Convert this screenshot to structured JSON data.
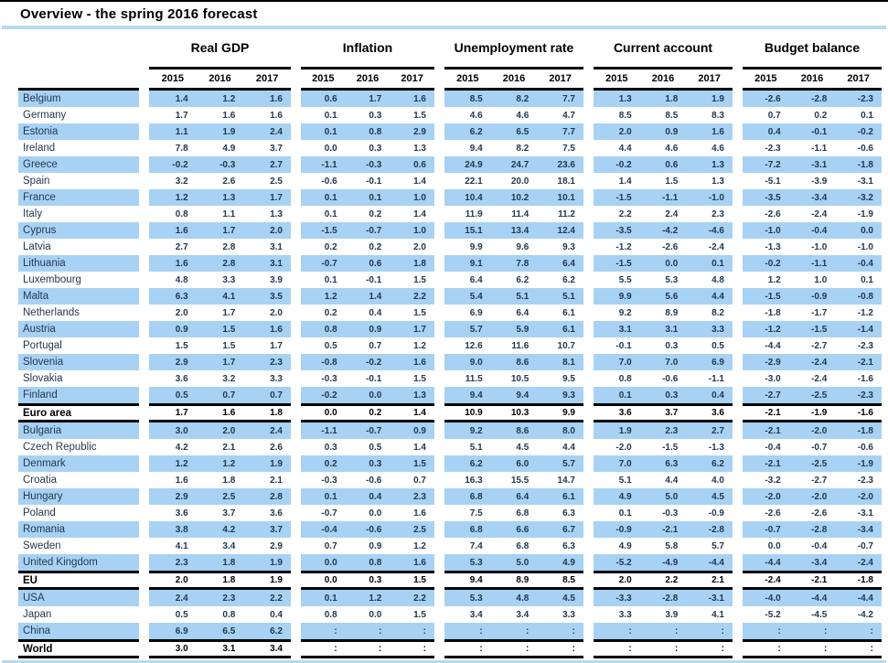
{
  "title": "Overview - the spring 2016 forecast",
  "colors": {
    "stripe": "#a8d2f4",
    "accent_line": "#b7d9ec",
    "rule": "#000000"
  },
  "table": {
    "group_headers": [
      "Real GDP",
      "Inflation",
      "Unemployment rate",
      "Current account",
      "Budget balance"
    ],
    "years": [
      "2015",
      "2016",
      "2017"
    ],
    "no_data_symbol": ":",
    "rows": [
      {
        "country": "Belgium",
        "bold": false,
        "values": [
          [
            "1.4",
            "1.2",
            "1.6"
          ],
          [
            "0.6",
            "1.7",
            "1.6"
          ],
          [
            "8.5",
            "8.2",
            "7.7"
          ],
          [
            "1.3",
            "1.8",
            "1.9"
          ],
          [
            "-2.6",
            "-2.8",
            "-2.3"
          ]
        ]
      },
      {
        "country": "Germany",
        "bold": false,
        "values": [
          [
            "1.7",
            "1.6",
            "1.6"
          ],
          [
            "0.1",
            "0.3",
            "1.5"
          ],
          [
            "4.6",
            "4.6",
            "4.7"
          ],
          [
            "8.5",
            "8.5",
            "8.3"
          ],
          [
            "0.7",
            "0.2",
            "0.1"
          ]
        ]
      },
      {
        "country": "Estonia",
        "bold": false,
        "values": [
          [
            "1.1",
            "1.9",
            "2.4"
          ],
          [
            "0.1",
            "0.8",
            "2.9"
          ],
          [
            "6.2",
            "6.5",
            "7.7"
          ],
          [
            "2.0",
            "0.9",
            "1.6"
          ],
          [
            "0.4",
            "-0.1",
            "-0.2"
          ]
        ]
      },
      {
        "country": "Ireland",
        "bold": false,
        "values": [
          [
            "7.8",
            "4.9",
            "3.7"
          ],
          [
            "0.0",
            "0.3",
            "1.3"
          ],
          [
            "9.4",
            "8.2",
            "7.5"
          ],
          [
            "4.4",
            "4.6",
            "4.6"
          ],
          [
            "-2.3",
            "-1.1",
            "-0.6"
          ]
        ]
      },
      {
        "country": "Greece",
        "bold": false,
        "values": [
          [
            "-0.2",
            "-0.3",
            "2.7"
          ],
          [
            "-1.1",
            "-0.3",
            "0.6"
          ],
          [
            "24.9",
            "24.7",
            "23.6"
          ],
          [
            "-0.2",
            "0.6",
            "1.3"
          ],
          [
            "-7.2",
            "-3.1",
            "-1.8"
          ]
        ]
      },
      {
        "country": "Spain",
        "bold": false,
        "values": [
          [
            "3.2",
            "2.6",
            "2.5"
          ],
          [
            "-0.6",
            "-0.1",
            "1.4"
          ],
          [
            "22.1",
            "20.0",
            "18.1"
          ],
          [
            "1.4",
            "1.5",
            "1.3"
          ],
          [
            "-5.1",
            "-3.9",
            "-3.1"
          ]
        ]
      },
      {
        "country": "France",
        "bold": false,
        "values": [
          [
            "1.2",
            "1.3",
            "1.7"
          ],
          [
            "0.1",
            "0.1",
            "1.0"
          ],
          [
            "10.4",
            "10.2",
            "10.1"
          ],
          [
            "-1.5",
            "-1.1",
            "-1.0"
          ],
          [
            "-3.5",
            "-3.4",
            "-3.2"
          ]
        ]
      },
      {
        "country": "Italy",
        "bold": false,
        "values": [
          [
            "0.8",
            "1.1",
            "1.3"
          ],
          [
            "0.1",
            "0.2",
            "1.4"
          ],
          [
            "11.9",
            "11.4",
            "11.2"
          ],
          [
            "2.2",
            "2.4",
            "2.3"
          ],
          [
            "-2.6",
            "-2.4",
            "-1.9"
          ]
        ]
      },
      {
        "country": "Cyprus",
        "bold": false,
        "values": [
          [
            "1.6",
            "1.7",
            "2.0"
          ],
          [
            "-1.5",
            "-0.7",
            "1.0"
          ],
          [
            "15.1",
            "13.4",
            "12.4"
          ],
          [
            "-3.5",
            "-4.2",
            "-4.6"
          ],
          [
            "-1.0",
            "-0.4",
            "0.0"
          ]
        ]
      },
      {
        "country": "Latvia",
        "bold": false,
        "values": [
          [
            "2.7",
            "2.8",
            "3.1"
          ],
          [
            "0.2",
            "0.2",
            "2.0"
          ],
          [
            "9.9",
            "9.6",
            "9.3"
          ],
          [
            "-1.2",
            "-2.6",
            "-2.4"
          ],
          [
            "-1.3",
            "-1.0",
            "-1.0"
          ]
        ]
      },
      {
        "country": "Lithuania",
        "bold": false,
        "values": [
          [
            "1.6",
            "2.8",
            "3.1"
          ],
          [
            "-0.7",
            "0.6",
            "1.8"
          ],
          [
            "9.1",
            "7.8",
            "6.4"
          ],
          [
            "-1.5",
            "0.0",
            "0.1"
          ],
          [
            "-0.2",
            "-1.1",
            "-0.4"
          ]
        ]
      },
      {
        "country": "Luxembourg",
        "bold": false,
        "values": [
          [
            "4.8",
            "3.3",
            "3.9"
          ],
          [
            "0.1",
            "-0.1",
            "1.5"
          ],
          [
            "6.4",
            "6.2",
            "6.2"
          ],
          [
            "5.5",
            "5.3",
            "4.8"
          ],
          [
            "1.2",
            "1.0",
            "0.1"
          ]
        ]
      },
      {
        "country": "Malta",
        "bold": false,
        "values": [
          [
            "6.3",
            "4.1",
            "3.5"
          ],
          [
            "1.2",
            "1.4",
            "2.2"
          ],
          [
            "5.4",
            "5.1",
            "5.1"
          ],
          [
            "9.9",
            "5.6",
            "4.4"
          ],
          [
            "-1.5",
            "-0.9",
            "-0.8"
          ]
        ]
      },
      {
        "country": "Netherlands",
        "bold": false,
        "values": [
          [
            "2.0",
            "1.7",
            "2.0"
          ],
          [
            "0.2",
            "0.4",
            "1.5"
          ],
          [
            "6.9",
            "6.4",
            "6.1"
          ],
          [
            "9.2",
            "8.9",
            "8.2"
          ],
          [
            "-1.8",
            "-1.7",
            "-1.2"
          ]
        ]
      },
      {
        "country": "Austria",
        "bold": false,
        "values": [
          [
            "0.9",
            "1.5",
            "1.6"
          ],
          [
            "0.8",
            "0.9",
            "1.7"
          ],
          [
            "5.7",
            "5.9",
            "6.1"
          ],
          [
            "3.1",
            "3.1",
            "3.3"
          ],
          [
            "-1.2",
            "-1.5",
            "-1.4"
          ]
        ]
      },
      {
        "country": "Portugal",
        "bold": false,
        "values": [
          [
            "1.5",
            "1.5",
            "1.7"
          ],
          [
            "0.5",
            "0.7",
            "1.2"
          ],
          [
            "12.6",
            "11.6",
            "10.7"
          ],
          [
            "-0.1",
            "0.3",
            "0.5"
          ],
          [
            "-4.4",
            "-2.7",
            "-2.3"
          ]
        ]
      },
      {
        "country": "Slovenia",
        "bold": false,
        "values": [
          [
            "2.9",
            "1.7",
            "2.3"
          ],
          [
            "-0.8",
            "-0.2",
            "1.6"
          ],
          [
            "9.0",
            "8.6",
            "8.1"
          ],
          [
            "7.0",
            "7.0",
            "6.9"
          ],
          [
            "-2.9",
            "-2.4",
            "-2.1"
          ]
        ]
      },
      {
        "country": "Slovakia",
        "bold": false,
        "values": [
          [
            "3.6",
            "3.2",
            "3.3"
          ],
          [
            "-0.3",
            "-0.1",
            "1.5"
          ],
          [
            "11.5",
            "10.5",
            "9.5"
          ],
          [
            "0.8",
            "-0.6",
            "-1.1"
          ],
          [
            "-3.0",
            "-2.4",
            "-1.6"
          ]
        ]
      },
      {
        "country": "Finland",
        "bold": false,
        "values": [
          [
            "0.5",
            "0.7",
            "0.7"
          ],
          [
            "-0.2",
            "0.0",
            "1.3"
          ],
          [
            "9.4",
            "9.4",
            "9.3"
          ],
          [
            "0.1",
            "0.3",
            "0.4"
          ],
          [
            "-2.7",
            "-2.5",
            "-2.3"
          ]
        ]
      },
      {
        "country": "Euro area",
        "bold": true,
        "values": [
          [
            "1.7",
            "1.6",
            "1.8"
          ],
          [
            "0.0",
            "0.2",
            "1.4"
          ],
          [
            "10.9",
            "10.3",
            "9.9"
          ],
          [
            "3.6",
            "3.7",
            "3.6"
          ],
          [
            "-2.1",
            "-1.9",
            "-1.6"
          ]
        ]
      },
      {
        "country": "Bulgaria",
        "bold": false,
        "values": [
          [
            "3.0",
            "2.0",
            "2.4"
          ],
          [
            "-1.1",
            "-0.7",
            "0.9"
          ],
          [
            "9.2",
            "8.6",
            "8.0"
          ],
          [
            "1.9",
            "2.3",
            "2.7"
          ],
          [
            "-2.1",
            "-2.0",
            "-1.8"
          ]
        ]
      },
      {
        "country": "Czech Republic",
        "bold": false,
        "values": [
          [
            "4.2",
            "2.1",
            "2.6"
          ],
          [
            "0.3",
            "0.5",
            "1.4"
          ],
          [
            "5.1",
            "4.5",
            "4.4"
          ],
          [
            "-2.0",
            "-1.5",
            "-1.3"
          ],
          [
            "-0.4",
            "-0.7",
            "-0.6"
          ]
        ]
      },
      {
        "country": "Denmark",
        "bold": false,
        "values": [
          [
            "1.2",
            "1.2",
            "1.9"
          ],
          [
            "0.2",
            "0.3",
            "1.5"
          ],
          [
            "6.2",
            "6.0",
            "5.7"
          ],
          [
            "7.0",
            "6.3",
            "6.2"
          ],
          [
            "-2.1",
            "-2.5",
            "-1.9"
          ]
        ]
      },
      {
        "country": "Croatia",
        "bold": false,
        "values": [
          [
            "1.6",
            "1.8",
            "2.1"
          ],
          [
            "-0.3",
            "-0.6",
            "0.7"
          ],
          [
            "16.3",
            "15.5",
            "14.7"
          ],
          [
            "5.1",
            "4.4",
            "4.0"
          ],
          [
            "-3.2",
            "-2.7",
            "-2.3"
          ]
        ]
      },
      {
        "country": "Hungary",
        "bold": false,
        "values": [
          [
            "2.9",
            "2.5",
            "2.8"
          ],
          [
            "0.1",
            "0.4",
            "2.3"
          ],
          [
            "6.8",
            "6.4",
            "6.1"
          ],
          [
            "4.9",
            "5.0",
            "4.5"
          ],
          [
            "-2.0",
            "-2.0",
            "-2.0"
          ]
        ]
      },
      {
        "country": "Poland",
        "bold": false,
        "values": [
          [
            "3.6",
            "3.7",
            "3.6"
          ],
          [
            "-0.7",
            "0.0",
            "1.6"
          ],
          [
            "7.5",
            "6.8",
            "6.3"
          ],
          [
            "0.1",
            "-0.3",
            "-0.9"
          ],
          [
            "-2.6",
            "-2.6",
            "-3.1"
          ]
        ]
      },
      {
        "country": "Romania",
        "bold": false,
        "values": [
          [
            "3.8",
            "4.2",
            "3.7"
          ],
          [
            "-0.4",
            "-0.6",
            "2.5"
          ],
          [
            "6.8",
            "6.6",
            "6.7"
          ],
          [
            "-0.9",
            "-2.1",
            "-2.8"
          ],
          [
            "-0.7",
            "-2.8",
            "-3.4"
          ]
        ]
      },
      {
        "country": "Sweden",
        "bold": false,
        "values": [
          [
            "4.1",
            "3.4",
            "2.9"
          ],
          [
            "0.7",
            "0.9",
            "1.2"
          ],
          [
            "7.4",
            "6.8",
            "6.3"
          ],
          [
            "4.9",
            "5.8",
            "5.7"
          ],
          [
            "0.0",
            "-0.4",
            "-0.7"
          ]
        ]
      },
      {
        "country": "United Kingdom",
        "bold": false,
        "values": [
          [
            "2.3",
            "1.8",
            "1.9"
          ],
          [
            "0.0",
            "0.8",
            "1.6"
          ],
          [
            "5.3",
            "5.0",
            "4.9"
          ],
          [
            "-5.2",
            "-4.9",
            "-4.4"
          ],
          [
            "-4.4",
            "-3.4",
            "-2.4"
          ]
        ]
      },
      {
        "country": "EU",
        "bold": true,
        "values": [
          [
            "2.0",
            "1.8",
            "1.9"
          ],
          [
            "0.0",
            "0.3",
            "1.5"
          ],
          [
            "9.4",
            "8.9",
            "8.5"
          ],
          [
            "2.0",
            "2.2",
            "2.1"
          ],
          [
            "-2.4",
            "-2.1",
            "-1.8"
          ]
        ]
      },
      {
        "country": "USA",
        "bold": false,
        "values": [
          [
            "2.4",
            "2.3",
            "2.2"
          ],
          [
            "0.1",
            "1.2",
            "2.2"
          ],
          [
            "5.3",
            "4.8",
            "4.5"
          ],
          [
            "-3.3",
            "-2.8",
            "-3.1"
          ],
          [
            "-4.0",
            "-4.4",
            "-4.4"
          ]
        ]
      },
      {
        "country": "Japan",
        "bold": false,
        "values": [
          [
            "0.5",
            "0.8",
            "0.4"
          ],
          [
            "0.8",
            "0.0",
            "1.5"
          ],
          [
            "3.4",
            "3.4",
            "3.3"
          ],
          [
            "3.3",
            "3.9",
            "4.1"
          ],
          [
            "-5.2",
            "-4.5",
            "-4.2"
          ]
        ]
      },
      {
        "country": "China",
        "bold": false,
        "values": [
          [
            "6.9",
            "6.5",
            "6.2"
          ],
          [
            ":",
            ":",
            ":"
          ],
          [
            ":",
            ":",
            ":"
          ],
          [
            ":",
            ":",
            ":"
          ],
          [
            ":",
            ":",
            ":"
          ]
        ]
      },
      {
        "country": "World",
        "bold": true,
        "values": [
          [
            "3.0",
            "3.1",
            "3.4"
          ],
          [
            ":",
            ":",
            ":"
          ],
          [
            ":",
            ":",
            ":"
          ],
          [
            ":",
            ":",
            ":"
          ],
          [
            ":",
            ":",
            ":"
          ]
        ]
      }
    ]
  }
}
